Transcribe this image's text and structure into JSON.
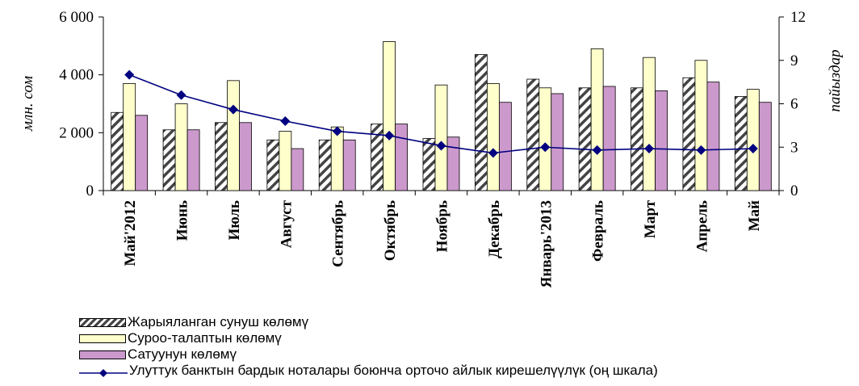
{
  "chart_data": {
    "type": "bar",
    "categories": [
      "Май'2012",
      "Июнь",
      "Июль",
      "Август",
      "Сентябрь",
      "Октябрь",
      "Ноябрь",
      "Декабрь",
      "Январь'2013",
      "Февраль",
      "Март",
      "Апрель",
      "Май"
    ],
    "series": [
      {
        "name": "Жарыяланган сунуш көлөмү",
        "type": "bar",
        "pattern": "hatch",
        "color": "#ffffff",
        "values": [
          2700,
          2100,
          2350,
          1750,
          1750,
          2300,
          1800,
          4700,
          3850,
          3550,
          3550,
          3900,
          3250
        ]
      },
      {
        "name": "Суроо-талаптын көлөмү",
        "type": "bar",
        "color": "#ffffcc",
        "values": [
          3700,
          3000,
          3800,
          2050,
          2200,
          5150,
          3650,
          3700,
          3550,
          4900,
          4600,
          4500,
          3500
        ]
      },
      {
        "name": "Сатуунун көлөмү",
        "type": "bar",
        "color": "#cc99cc",
        "values": [
          2600,
          2100,
          2350,
          1450,
          1750,
          2300,
          1850,
          3050,
          3350,
          3600,
          3450,
          3750,
          3050
        ]
      },
      {
        "name": "Улуттук банктын бардык ноталары боюнча орточо айлык кирешелүүлүк (оң шкала)",
        "type": "line",
        "axis": "right",
        "color": "#000080",
        "values": [
          8.0,
          6.6,
          5.6,
          4.8,
          4.1,
          3.8,
          3.1,
          2.6,
          3.0,
          2.8,
          2.9,
          2.8,
          2.9
        ]
      }
    ],
    "ylabel": "млн. сом",
    "y2label": "пайыздар",
    "ylim": [
      0,
      6000
    ],
    "y2lim": [
      0,
      12
    ],
    "yticks": [
      "0",
      "2 000",
      "4 000",
      "6 000"
    ],
    "y2ticks": [
      "0",
      "3",
      "6",
      "9",
      "12"
    ],
    "legend_position": "bottom",
    "grid": false
  }
}
